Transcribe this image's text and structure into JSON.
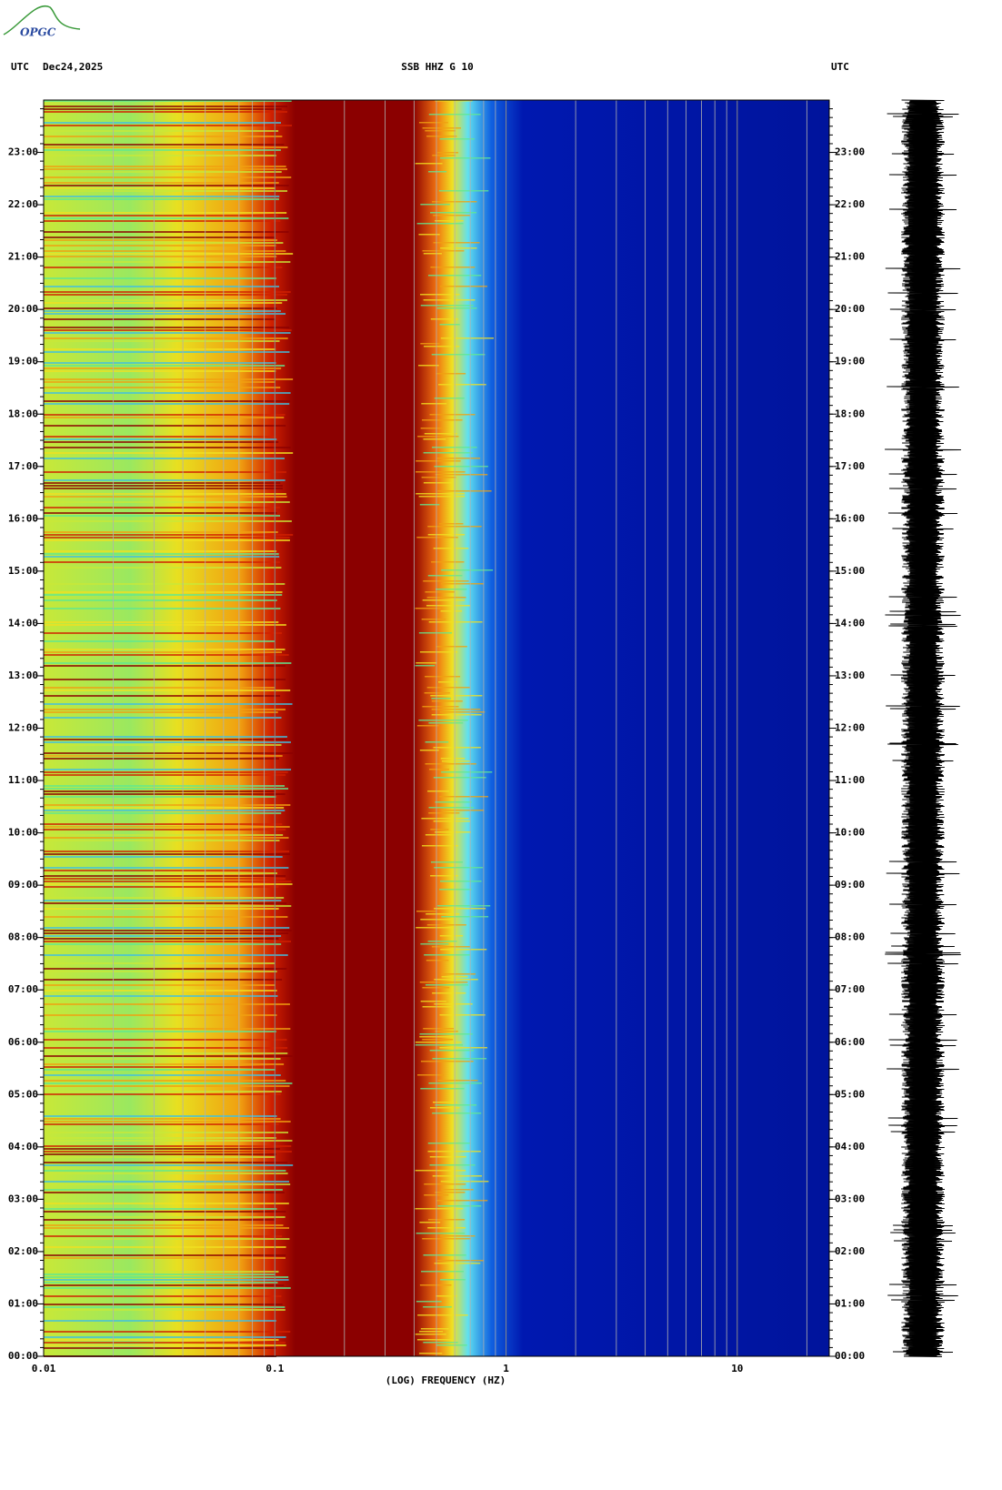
{
  "logo": "OPGC",
  "chart_data": {
    "type": "spectrogram",
    "title": "SSB HHZ G 10",
    "date": "Dec24,2025",
    "time_zone_left": "UTC",
    "time_zone_right": "UTC",
    "x_label": "(LOG) FREQUENCY (HZ)",
    "xscale": "log",
    "xlim": [
      0.01,
      25
    ],
    "xticks": [
      0.01,
      0.1,
      1,
      10
    ],
    "ylim": [
      0,
      24
    ],
    "yticks": [
      {
        "value": 0,
        "label": "00:00"
      },
      {
        "value": 1,
        "label": "01:00"
      },
      {
        "value": 2,
        "label": "02:00"
      },
      {
        "value": 3,
        "label": "03:00"
      },
      {
        "value": 4,
        "label": "04:00"
      },
      {
        "value": 5,
        "label": "05:00"
      },
      {
        "value": 6,
        "label": "06:00"
      },
      {
        "value": 7,
        "label": "07:00"
      },
      {
        "value": 8,
        "label": "08:00"
      },
      {
        "value": 9,
        "label": "09:00"
      },
      {
        "value": 10,
        "label": "10:00"
      },
      {
        "value": 11,
        "label": "11:00"
      },
      {
        "value": 12,
        "label": "12:00"
      },
      {
        "value": 13,
        "label": "13:00"
      },
      {
        "value": 14,
        "label": "14:00"
      },
      {
        "value": 15,
        "label": "15:00"
      },
      {
        "value": 16,
        "label": "16:00"
      },
      {
        "value": 17,
        "label": "17:00"
      },
      {
        "value": 18,
        "label": "18:00"
      },
      {
        "value": 19,
        "label": "19:00"
      },
      {
        "value": 20,
        "label": "20:00"
      },
      {
        "value": 21,
        "label": "21:00"
      },
      {
        "value": 22,
        "label": "22:00"
      },
      {
        "value": 23,
        "label": "23:00"
      }
    ]
  }
}
